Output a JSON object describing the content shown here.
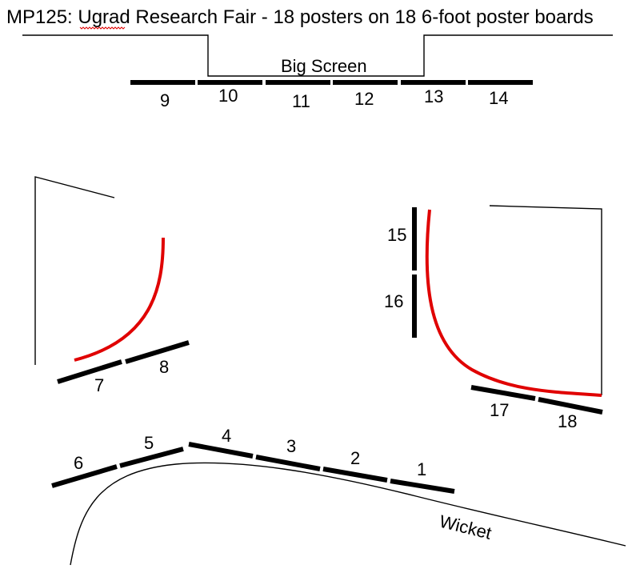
{
  "title": "MP125: Ugrad Research Fair - 18 posters on 18  6-foot poster boards",
  "labels": {
    "big_screen": "Big Screen",
    "wicket": "Wicket"
  },
  "boards": {
    "b1": "1",
    "b2": "2",
    "b3": "3",
    "b4": "4",
    "b5": "5",
    "b6": "6",
    "b7": "7",
    "b8": "8",
    "b9": "9",
    "b10": "10",
    "b11": "11",
    "b12": "12",
    "b13": "13",
    "b14": "14",
    "b15": "15",
    "b16": "16",
    "b17": "17",
    "b18": "18"
  },
  "colors": {
    "board": "#000000",
    "curve": "#e00000",
    "wall": "#000000"
  }
}
